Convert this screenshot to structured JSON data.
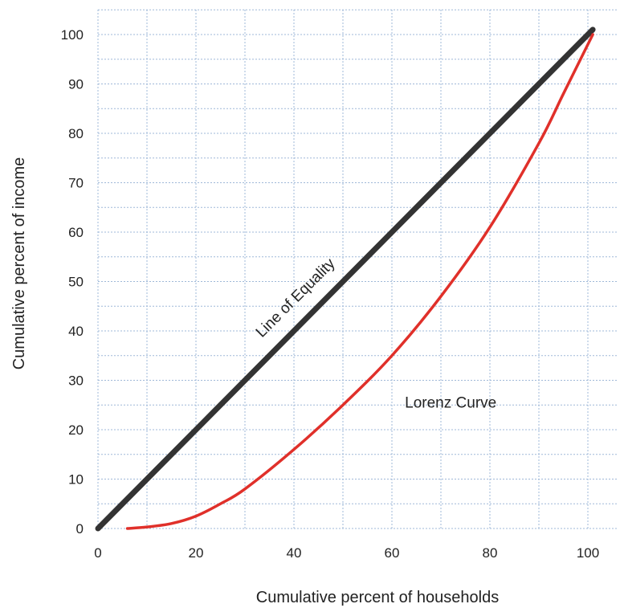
{
  "chart_data": {
    "type": "line",
    "title": "",
    "xlabel": "Cumulative percent of households",
    "ylabel": "Cumulative percent of income",
    "xlim": [
      0,
      105
    ],
    "ylim": [
      0,
      105
    ],
    "x_ticks": [
      "0",
      "20",
      "40",
      "60",
      "80",
      "100"
    ],
    "y_ticks": [
      "0",
      "10",
      "20",
      "30",
      "40",
      "50",
      "60",
      "70",
      "80",
      "90",
      "100"
    ],
    "grid": true,
    "series": [
      {
        "label": "Line of Equality",
        "color": "#333333",
        "x": [
          0,
          101
        ],
        "y": [
          0,
          101
        ]
      },
      {
        "label": "Lorenz Curve",
        "color": "#e0302a",
        "x": [
          6,
          10,
          15,
          20,
          25,
          30,
          40,
          50,
          60,
          70,
          80,
          90,
          95,
          101
        ],
        "y": [
          0,
          0.3,
          1,
          2.5,
          5,
          8,
          16,
          25,
          35,
          47,
          61,
          78,
          88,
          100
        ]
      }
    ]
  }
}
